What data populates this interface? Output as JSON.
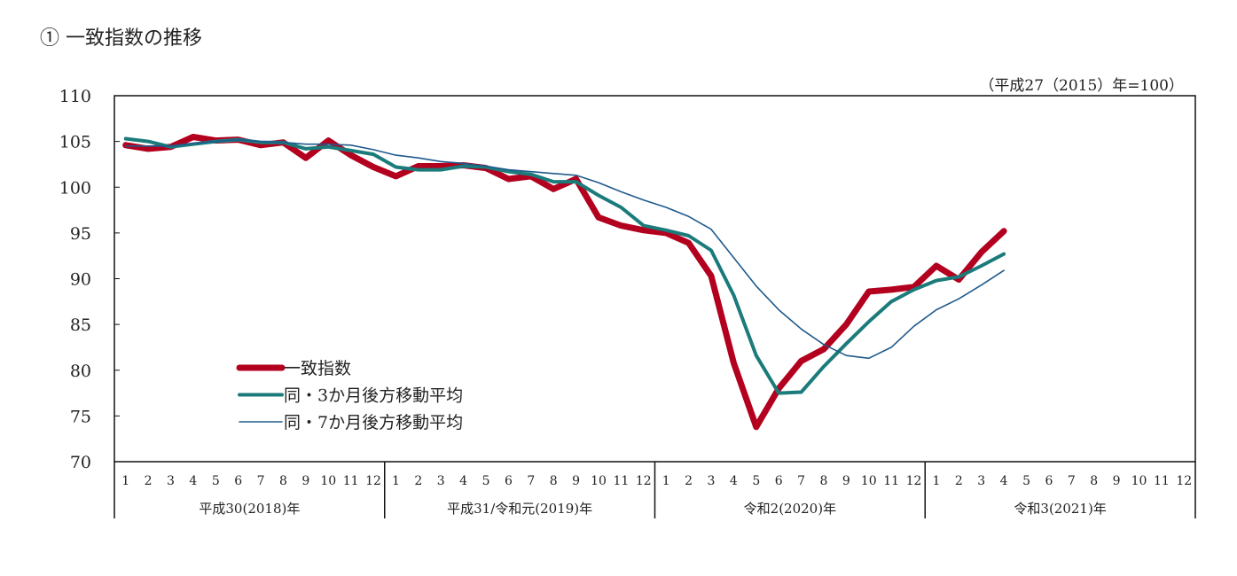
{
  "title": "①  一致指数の推移",
  "chart_data": {
    "type": "line",
    "title": "①  一致指数の推移",
    "unit_note": "（平成27（2015）年=100）",
    "ylim": [
      70,
      110
    ],
    "yticks": [
      110,
      105,
      100,
      95,
      90,
      85,
      80,
      75,
      70
    ],
    "grid": false,
    "legend_position": "lower-left",
    "month_labels": [
      "1",
      "2",
      "3",
      "4",
      "5",
      "6",
      "7",
      "8",
      "9",
      "10",
      "11",
      "12"
    ],
    "years": [
      "平成30(2018)年",
      "平成31/令和元(2019)年",
      "令和2(2020)年",
      "令和3(2021)年"
    ],
    "series": [
      {
        "name": "一致指数",
        "color": "#b3001e",
        "width": 7,
        "values": [
          104.6,
          104.2,
          104.4,
          105.5,
          105.1,
          105.2,
          104.6,
          104.9,
          103.2,
          105.1,
          103.5,
          102.2,
          101.2,
          102.3,
          102.3,
          102.4,
          102.1,
          100.9,
          101.2,
          99.8,
          100.9,
          96.7,
          95.8,
          95.3,
          95.0,
          93.9,
          90.3,
          80.8,
          73.8,
          78.0,
          81.0,
          82.3,
          85.0,
          88.6,
          88.8,
          89.1,
          91.4,
          89.9,
          92.9,
          95.2
        ]
      },
      {
        "name": "同・3か月後方移動平均",
        "color": "#1b7b7b",
        "width": 4,
        "values": [
          105.3,
          105.0,
          104.4,
          104.7,
          105.0,
          105.2,
          104.9,
          104.9,
          104.2,
          104.4,
          104.0,
          103.6,
          102.2,
          101.9,
          101.9,
          102.3,
          102.2,
          101.7,
          101.4,
          100.6,
          100.6,
          99.1,
          97.8,
          95.8,
          95.3,
          94.7,
          93.1,
          88.2,
          81.6,
          77.5,
          77.6,
          80.4,
          82.9,
          85.3,
          87.5,
          88.8,
          89.8,
          90.2,
          91.4,
          92.7
        ]
      },
      {
        "name": "同・7か月後方移動平均",
        "color": "#1f5a8c",
        "width": 1.6,
        "values": [
          104.5,
          104.5,
          104.5,
          104.8,
          105.0,
          105.2,
          105.0,
          104.9,
          104.7,
          104.7,
          104.6,
          104.1,
          103.5,
          103.2,
          102.8,
          102.6,
          102.3,
          101.9,
          101.7,
          101.5,
          101.3,
          100.5,
          99.5,
          98.6,
          97.8,
          96.8,
          95.4,
          92.3,
          89.2,
          86.6,
          84.5,
          82.8,
          81.6,
          81.3,
          82.5,
          84.8,
          86.6,
          87.8,
          89.3,
          90.9
        ]
      }
    ]
  }
}
